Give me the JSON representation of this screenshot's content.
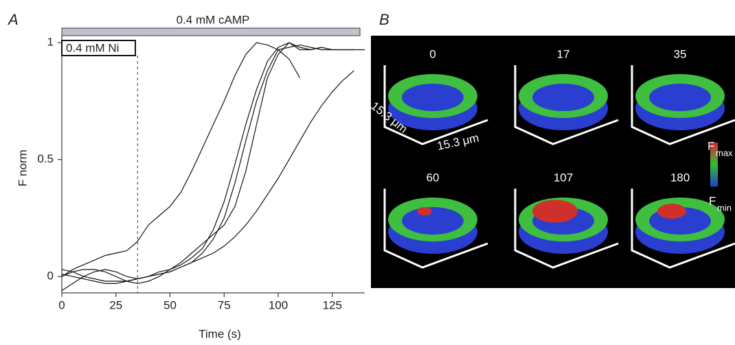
{
  "panel_labels": [
    "A",
    "B"
  ],
  "chart_data": {
    "type": "line",
    "annotations": [
      "0.4 mM cAMP",
      "0.4 mM Ni"
    ],
    "xlabel": "Time (s)",
    "ylabel": "F norm",
    "x": [
      0,
      5,
      10,
      15,
      20,
      25,
      30,
      35,
      40,
      45,
      50,
      55,
      60,
      65,
      70,
      75,
      80,
      85,
      90,
      95,
      100,
      105,
      110,
      115,
      120,
      125,
      130,
      135,
      140
    ],
    "series": [
      {
        "color": "#111111",
        "values": [
          0.0,
          0.03,
          0.05,
          0.07,
          0.09,
          0.1,
          0.11,
          0.15,
          0.22,
          0.26,
          0.3,
          0.36,
          0.45,
          0.55,
          0.65,
          0.75,
          0.86,
          0.95,
          1.0,
          0.99,
          0.97,
          0.98,
          0.99,
          0.98,
          0.97,
          0.97,
          0.97,
          0.97,
          null
        ]
      },
      {
        "color": "#111111",
        "values": [
          0.01,
          0.0,
          -0.01,
          -0.02,
          -0.03,
          -0.03,
          -0.02,
          -0.01,
          0.0,
          0.02,
          0.03,
          0.05,
          0.08,
          0.12,
          0.2,
          0.32,
          0.48,
          0.65,
          0.8,
          0.92,
          0.98,
          1.0,
          0.97,
          0.97,
          0.98,
          0.97,
          0.97,
          0.97,
          0.97
        ]
      },
      {
        "color": "#111111",
        "values": [
          -0.06,
          -0.03,
          0.0,
          0.02,
          0.03,
          0.02,
          0.0,
          -0.01,
          0.0,
          0.01,
          0.02,
          0.04,
          0.06,
          0.1,
          0.16,
          0.25,
          0.4,
          0.58,
          0.75,
          0.88,
          0.97,
          0.93,
          0.85,
          null,
          null,
          null,
          null,
          null,
          null
        ]
      },
      {
        "color": "#111111",
        "values": [
          0.0,
          0.02,
          0.03,
          0.03,
          0.02,
          0.0,
          -0.02,
          -0.03,
          -0.02,
          0.0,
          0.03,
          0.06,
          0.1,
          0.14,
          0.18,
          0.22,
          0.3,
          0.45,
          0.65,
          0.85,
          0.95,
          1.0,
          0.98,
          0.97,
          0.98,
          null,
          null,
          null,
          null
        ]
      },
      {
        "color": "#111111",
        "values": [
          0.03,
          0.02,
          0.0,
          -0.01,
          -0.02,
          -0.02,
          -0.02,
          -0.01,
          0.0,
          0.01,
          0.02,
          0.04,
          0.06,
          0.08,
          0.1,
          0.13,
          0.17,
          0.22,
          0.28,
          0.35,
          0.42,
          0.5,
          0.58,
          0.66,
          0.73,
          0.79,
          0.84,
          0.88,
          null
        ]
      }
    ],
    "vlines": [
      35
    ],
    "xlim": [
      0,
      140
    ],
    "xticks": [
      0,
      25,
      50,
      75,
      100,
      125
    ],
    "ylim": [
      -0.07,
      1.03
    ],
    "yticks": [
      0,
      0.5,
      1
    ]
  },
  "images": {
    "frames": [
      "0",
      "17",
      "35",
      "60",
      "107",
      "180"
    ],
    "dimension_labels": [
      "15.3 μm",
      "15.3 μm"
    ],
    "scale": {
      "max": {
        "letter": "F",
        "sub": "max"
      },
      "min": {
        "letter": "F",
        "sub": "min"
      }
    }
  }
}
